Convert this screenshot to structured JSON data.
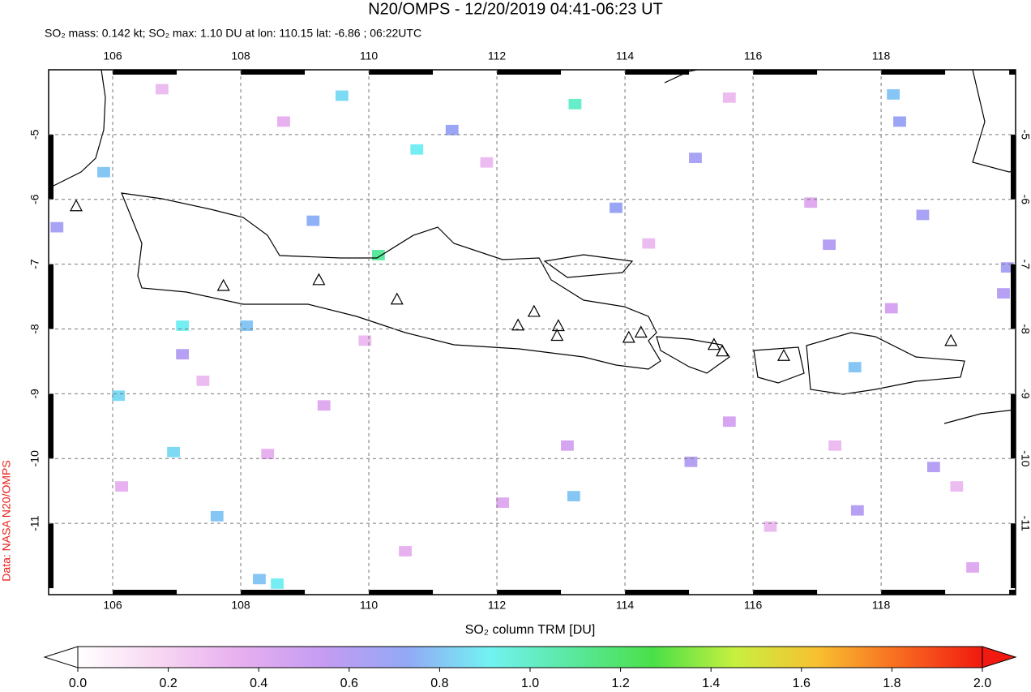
{
  "chart_data": {
    "type": "map",
    "title": "N20/OMPS - 12/20/2019 04:41-06:23 UT",
    "subtitle": "SO₂ mass: 0.142 kt; SO₂ max: 1.10 DU at lon: 110.15 lat: -6.86 ; 06:22UTC",
    "credit": "Data: NASA N20/OMPS",
    "xlim": [
      105,
      120.1
    ],
    "ylim": [
      -12.1,
      -4
    ],
    "xticks": [
      106,
      108,
      110,
      112,
      114,
      116,
      118
    ],
    "yticks": [
      -5,
      -6,
      -7,
      -8,
      -9,
      -10,
      -11
    ],
    "grid": true,
    "pixels": {
      "lon": [
        109.58,
        113.22,
        110.75,
        110.15,
        118.19,
        118.29,
        115.1,
        118.65,
        117.19,
        119.97,
        119.91,
        107.09,
        107.09,
        106.09,
        106.95,
        107.63,
        108.29,
        108.57,
        113.2,
        115.03,
        118.82,
        117.59,
        105.86,
        109.13,
        113.86,
        108.09,
        105.13,
        111.3,
        117.63,
        106.77,
        108.67,
        111.84,
        115.63,
        116.9,
        106.14,
        109.3,
        113.1,
        116.27,
        119.43,
        110.57,
        114.37,
        118.16,
        107.41,
        112.09,
        119.18,
        115.63,
        109.94,
        108.42,
        117.28
      ],
      "lat": [
        -4.4,
        -4.53,
        -5.23,
        -6.86,
        -4.38,
        -4.8,
        -5.36,
        -6.24,
        -6.7,
        -7.05,
        -7.45,
        -8.39,
        -7.95,
        -9.03,
        -9.9,
        -10.89,
        -11.86,
        -11.93,
        -10.58,
        -10.05,
        -10.13,
        -8.59,
        -5.58,
        -6.33,
        -6.13,
        -7.95,
        -6.43,
        -4.93,
        -10.8,
        -4.3,
        -4.8,
        -5.43,
        -4.43,
        -6.05,
        -10.43,
        -9.18,
        -9.8,
        -11.05,
        -11.68,
        -11.43,
        -6.68,
        -7.68,
        -8.8,
        -10.68,
        -10.43,
        -9.43,
        -8.18,
        -9.93,
        -9.8
      ],
      "values": [
        0.85,
        1.0,
        0.9,
        1.1,
        0.8,
        0.7,
        0.65,
        0.65,
        0.6,
        0.65,
        0.6,
        0.6,
        0.9,
        0.85,
        0.85,
        0.8,
        0.8,
        0.9,
        0.8,
        0.6,
        0.6,
        0.8,
        0.8,
        0.75,
        0.7,
        0.8,
        0.65,
        0.7,
        0.6,
        0.3,
        0.35,
        0.3,
        0.3,
        0.4,
        0.35,
        0.4,
        0.45,
        0.3,
        0.4,
        0.35,
        0.3,
        0.45,
        0.3,
        0.4,
        0.3,
        0.45,
        0.3,
        0.35,
        0.3
      ]
    },
    "volcanoes": {
      "lon": [
        107.73,
        109.22,
        110.44,
        112.33,
        112.58,
        112.96,
        112.94,
        114.06,
        114.25,
        115.39,
        115.52,
        116.48,
        119.09,
        105.43
      ],
      "lat": [
        -7.33,
        -7.24,
        -7.54,
        -7.94,
        -7.73,
        -7.95,
        -8.1,
        -8.13,
        -8.05,
        -8.24,
        -8.34,
        -8.41,
        -8.18,
        -6.1
      ]
    },
    "colorbar": {
      "label": "SO₂ column TRM [DU]",
      "range": [
        0,
        2
      ],
      "ticks": [
        {
          "value": 0,
          "label": "0.0"
        },
        0.2,
        0.4,
        0.6,
        0.8,
        {
          "value": 1,
          "label": "1.0"
        },
        1.2,
        1.4,
        1.6,
        1.8,
        {
          "value": 2,
          "label": "2.0"
        }
      ],
      "colormap": [
        "#ffffff",
        "#f8d6f2",
        "#e6aef0",
        "#c49cf2",
        "#93a8f6",
        "#72f2f2",
        "#5ae8a0",
        "#4ae048",
        "#c8f040",
        "#f8c030",
        "#f86a20",
        "#f01a10"
      ]
    }
  }
}
